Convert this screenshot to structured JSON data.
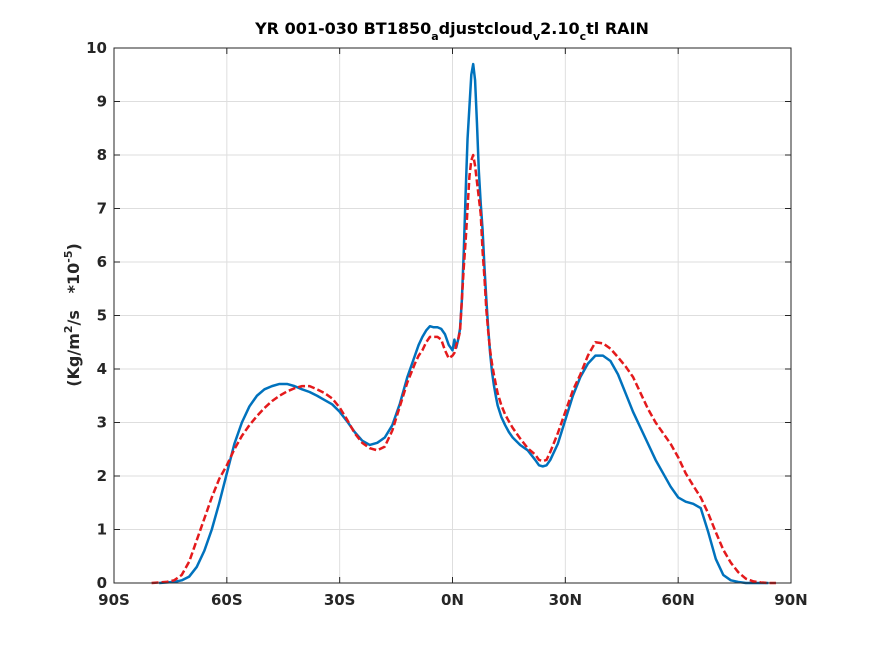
{
  "chart_data": {
    "type": "line",
    "title": {
      "parts": [
        "YR 001-030 BT1850",
        "a",
        "djustcloud",
        "v",
        "2.10",
        "c",
        "tl RAIN"
      ],
      "subscript_indices": [
        1,
        3,
        5
      ]
    },
    "ylabel": {
      "parts": [
        "(Kg/m",
        "2",
        "/s   *10",
        "-5",
        ")"
      ],
      "superscript_indices": [
        1,
        3
      ]
    },
    "xlabel": "",
    "xlim": [
      -90,
      90
    ],
    "ylim": [
      0,
      10
    ],
    "xtick_values": [
      -90,
      -60,
      -30,
      0,
      30,
      60,
      90
    ],
    "xtick_labels": [
      "90S",
      "60S",
      "30S",
      "0N",
      "30N",
      "60N",
      "90N"
    ],
    "ytick_values": [
      0,
      1,
      2,
      3,
      4,
      5,
      6,
      7,
      8,
      9,
      10
    ],
    "ytick_labels": [
      "0",
      "1",
      "2",
      "3",
      "4",
      "5",
      "6",
      "7",
      "8",
      "9",
      "10"
    ],
    "grid": true,
    "series": [
      {
        "color": "#0072BD",
        "style": "solid",
        "x": [
          -78,
          -74,
          -72,
          -70,
          -68,
          -66,
          -64,
          -62,
          -60,
          -58,
          -56,
          -54,
          -52,
          -50,
          -48,
          -46,
          -44,
          -42,
          -40,
          -38,
          -36,
          -34,
          -32,
          -30,
          -28,
          -26,
          -24,
          -22,
          -20,
          -18,
          -16,
          -14,
          -12,
          -10,
          -9,
          -8,
          -7,
          -6,
          -5,
          -4,
          -3,
          -2,
          -1,
          0,
          0.5,
          1,
          1.5,
          2,
          2.5,
          3,
          3.5,
          4,
          4.5,
          5,
          5.5,
          6,
          6.5,
          7,
          7.5,
          8,
          8.5,
          9,
          9.5,
          10,
          10.5,
          11,
          11.5,
          12,
          13,
          14,
          15,
          16,
          18,
          20,
          22,
          23,
          24,
          25,
          26,
          28,
          30,
          32,
          34,
          36,
          38,
          40,
          42,
          44,
          46,
          48,
          50,
          52,
          54,
          56,
          58,
          60,
          62,
          64,
          66,
          68,
          70,
          72,
          74,
          76,
          78,
          80,
          82,
          84
        ],
        "y": [
          0.0,
          0.02,
          0.05,
          0.12,
          0.3,
          0.6,
          1.0,
          1.5,
          2.05,
          2.6,
          3.0,
          3.3,
          3.5,
          3.62,
          3.68,
          3.72,
          3.72,
          3.68,
          3.62,
          3.57,
          3.5,
          3.42,
          3.34,
          3.2,
          3.02,
          2.82,
          2.66,
          2.58,
          2.62,
          2.72,
          2.95,
          3.35,
          3.85,
          4.25,
          4.45,
          4.6,
          4.72,
          4.8,
          4.78,
          4.78,
          4.75,
          4.65,
          4.45,
          4.35,
          4.55,
          4.4,
          4.55,
          4.75,
          5.3,
          6.2,
          7.3,
          8.3,
          8.9,
          9.5,
          9.7,
          9.4,
          8.6,
          7.7,
          7.1,
          6.6,
          5.9,
          5.3,
          4.75,
          4.3,
          3.95,
          3.7,
          3.5,
          3.32,
          3.1,
          2.95,
          2.82,
          2.72,
          2.58,
          2.48,
          2.3,
          2.2,
          2.18,
          2.2,
          2.3,
          2.6,
          3.05,
          3.5,
          3.85,
          4.1,
          4.25,
          4.25,
          4.15,
          3.9,
          3.55,
          3.2,
          2.9,
          2.6,
          2.3,
          2.05,
          1.8,
          1.6,
          1.52,
          1.48,
          1.4,
          0.95,
          0.45,
          0.15,
          0.05,
          0.02,
          0.0,
          0.0,
          0.0,
          0.0
        ]
      },
      {
        "color": "#E41A1C",
        "style": "dashed",
        "x": [
          -80,
          -76,
          -74,
          -72,
          -70,
          -68,
          -66,
          -64,
          -62,
          -60,
          -58,
          -56,
          -54,
          -52,
          -50,
          -48,
          -46,
          -44,
          -42,
          -40,
          -38,
          -36,
          -34,
          -32,
          -30,
          -28,
          -26,
          -24,
          -22,
          -20,
          -18,
          -16,
          -14,
          -12,
          -10,
          -9,
          -8,
          -7,
          -6,
          -5,
          -4,
          -3,
          -2,
          -1,
          0,
          0.5,
          1,
          1.5,
          2,
          2.5,
          3,
          3.5,
          4,
          4.5,
          5,
          5.5,
          6,
          6.5,
          7,
          7.5,
          8,
          8.5,
          9,
          9.5,
          10,
          10.5,
          11,
          11.5,
          12,
          13,
          14,
          15,
          16,
          18,
          20,
          22,
          23,
          24,
          25,
          26,
          28,
          30,
          32,
          34,
          36,
          38,
          40,
          42,
          44,
          46,
          48,
          50,
          52,
          54,
          56,
          58,
          60,
          62,
          64,
          66,
          68,
          70,
          72,
          74,
          76,
          78,
          80,
          82,
          84,
          86
        ],
        "y": [
          0.0,
          0.02,
          0.05,
          0.15,
          0.4,
          0.8,
          1.2,
          1.6,
          1.95,
          2.2,
          2.5,
          2.75,
          2.95,
          3.12,
          3.27,
          3.4,
          3.5,
          3.58,
          3.64,
          3.68,
          3.68,
          3.62,
          3.55,
          3.45,
          3.28,
          3.05,
          2.8,
          2.62,
          2.52,
          2.48,
          2.55,
          2.85,
          3.3,
          3.75,
          4.1,
          4.25,
          4.35,
          4.5,
          4.6,
          4.6,
          4.6,
          4.55,
          4.35,
          4.2,
          4.25,
          4.3,
          4.45,
          4.55,
          4.7,
          5.3,
          5.9,
          6.4,
          7.0,
          7.6,
          7.9,
          8.0,
          7.8,
          7.5,
          7.2,
          6.9,
          6.2,
          5.7,
          5.1,
          4.7,
          4.35,
          4.1,
          3.9,
          3.72,
          3.55,
          3.32,
          3.15,
          3.02,
          2.9,
          2.7,
          2.52,
          2.4,
          2.3,
          2.28,
          2.3,
          2.45,
          2.8,
          3.2,
          3.6,
          3.9,
          4.25,
          4.5,
          4.48,
          4.38,
          4.22,
          4.05,
          3.85,
          3.55,
          3.25,
          3.0,
          2.8,
          2.6,
          2.35,
          2.05,
          1.82,
          1.6,
          1.3,
          0.95,
          0.62,
          0.38,
          0.2,
          0.08,
          0.03,
          0.01,
          0.0,
          0.0
        ]
      }
    ]
  }
}
